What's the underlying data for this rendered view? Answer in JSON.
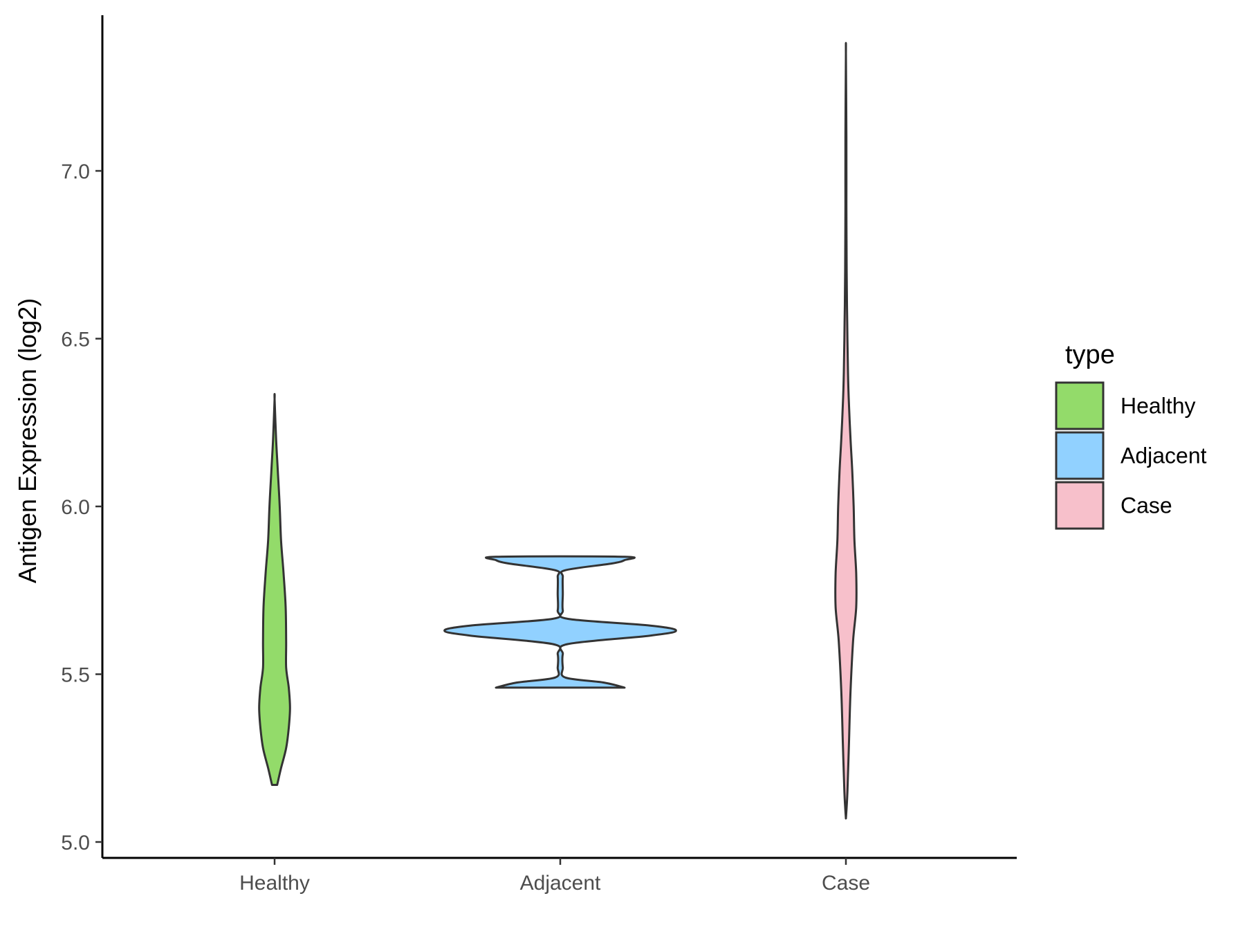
{
  "chart_data": {
    "type": "violin",
    "title": "",
    "xlabel": "",
    "ylabel": "Antigen Expression (log2)",
    "categories": [
      "Healthy",
      "Adjacent",
      "Case"
    ],
    "ylim": [
      4.96,
      7.46
    ],
    "yticks": [
      "5.0",
      "5.5",
      "6.0",
      "6.5",
      "7.0"
    ],
    "ytick_values": [
      5.0,
      5.5,
      6.0,
      6.5,
      7.0
    ],
    "grid": false,
    "legend": {
      "title": "type",
      "position": "right",
      "entries": [
        "Healthy",
        "Adjacent",
        "Case"
      ]
    },
    "colors": {
      "Healthy": "#93DB6A",
      "Adjacent": "#91D1FF",
      "Case": "#F7C0CB",
      "outline": "#333333"
    },
    "series": [
      {
        "name": "Healthy",
        "min": 5.17,
        "max": 6.32,
        "profile": [
          [
            5.17,
            0.01
          ],
          [
            5.22,
            0.025
          ],
          [
            5.28,
            0.045
          ],
          [
            5.34,
            0.055
          ],
          [
            5.4,
            0.06
          ],
          [
            5.46,
            0.055
          ],
          [
            5.52,
            0.045
          ],
          [
            5.6,
            0.045
          ],
          [
            5.7,
            0.043
          ],
          [
            5.8,
            0.035
          ],
          [
            5.9,
            0.025
          ],
          [
            6.0,
            0.02
          ],
          [
            6.1,
            0.013
          ],
          [
            6.2,
            0.006
          ],
          [
            6.32,
            0.0
          ]
        ]
      },
      {
        "name": "Adjacent",
        "min": 5.46,
        "max": 5.85,
        "profile": [
          [
            5.46,
            0.25
          ],
          [
            5.475,
            0.17
          ],
          [
            5.49,
            0.02
          ],
          [
            5.52,
            0.01
          ],
          [
            5.56,
            0.01
          ],
          [
            5.59,
            0.03
          ],
          [
            5.615,
            0.35
          ],
          [
            5.63,
            0.45
          ],
          [
            5.645,
            0.35
          ],
          [
            5.665,
            0.03
          ],
          [
            5.69,
            0.01
          ],
          [
            5.74,
            0.01
          ],
          [
            5.79,
            0.01
          ],
          [
            5.81,
            0.02
          ],
          [
            5.83,
            0.2
          ],
          [
            5.84,
            0.25
          ],
          [
            5.85,
            0.25
          ]
        ]
      },
      {
        "name": "Case",
        "min": 5.07,
        "max": 7.35,
        "profile": [
          [
            5.07,
            0.0
          ],
          [
            5.15,
            0.006
          ],
          [
            5.3,
            0.012
          ],
          [
            5.45,
            0.018
          ],
          [
            5.6,
            0.028
          ],
          [
            5.7,
            0.04
          ],
          [
            5.8,
            0.04
          ],
          [
            5.9,
            0.033
          ],
          [
            6.0,
            0.03
          ],
          [
            6.1,
            0.025
          ],
          [
            6.2,
            0.018
          ],
          [
            6.3,
            0.012
          ],
          [
            6.4,
            0.008
          ],
          [
            6.55,
            0.005
          ],
          [
            6.7,
            0.003
          ],
          [
            6.9,
            0.002
          ],
          [
            7.1,
            0.002
          ],
          [
            7.35,
            0.0
          ]
        ]
      }
    ]
  }
}
